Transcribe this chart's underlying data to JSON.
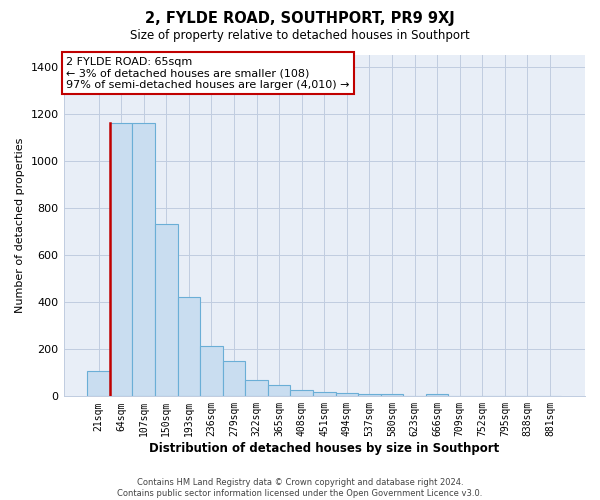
{
  "title": "2, FYLDE ROAD, SOUTHPORT, PR9 9XJ",
  "subtitle": "Size of property relative to detached houses in Southport",
  "xlabel": "Distribution of detached houses by size in Southport",
  "ylabel": "Number of detached properties",
  "bar_labels": [
    "21sqm",
    "64sqm",
    "107sqm",
    "150sqm",
    "193sqm",
    "236sqm",
    "279sqm",
    "322sqm",
    "365sqm",
    "408sqm",
    "451sqm",
    "494sqm",
    "537sqm",
    "580sqm",
    "623sqm",
    "666sqm",
    "709sqm",
    "752sqm",
    "795sqm",
    "838sqm",
    "881sqm"
  ],
  "bar_values": [
    108,
    1160,
    1160,
    730,
    420,
    215,
    148,
    70,
    50,
    28,
    18,
    15,
    12,
    10,
    0,
    12,
    0,
    0,
    0,
    0,
    0
  ],
  "bar_color": "#c9ddf0",
  "bar_edge_color": "#6aaed6",
  "highlight_bar_index": 1,
  "highlight_edge_color": "#c00000",
  "annotation_text": "2 FYLDE ROAD: 65sqm\n← 3% of detached houses are smaller (108)\n97% of semi-detached houses are larger (4,010) →",
  "annotation_box_color": "#ffffff",
  "annotation_box_edge_color": "#c00000",
  "ylim": [
    0,
    1450
  ],
  "yticks": [
    0,
    200,
    400,
    600,
    800,
    1000,
    1200,
    1400
  ],
  "footer_line1": "Contains HM Land Registry data © Crown copyright and database right 2024.",
  "footer_line2": "Contains public sector information licensed under the Open Government Licence v3.0.",
  "background_color": "#ffffff",
  "plot_bg_color": "#e8eef7",
  "grid_color": "#c0cce0"
}
